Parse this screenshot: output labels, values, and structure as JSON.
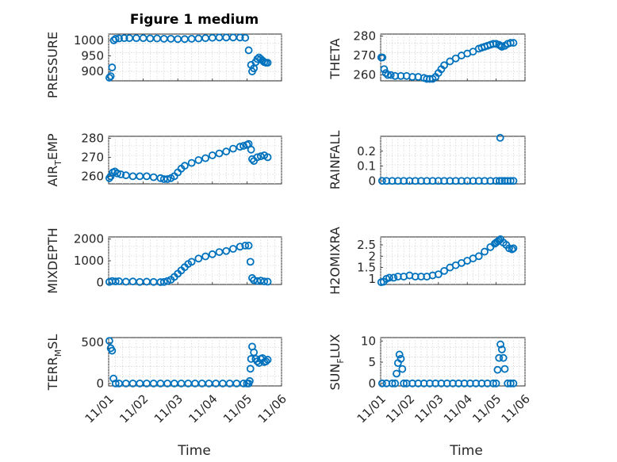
{
  "chart_data": [
    {
      "type": "scatter",
      "title": "Figure 1 medium",
      "ylabel": "PRESSURE",
      "xlim": [
        0,
        5
      ],
      "ylim": [
        870,
        1020
      ],
      "yticks": [
        900,
        950,
        1000
      ],
      "ytick_labels": [
        "900",
        "950",
        "1000"
      ],
      "x": [
        0.02,
        0.06,
        0.1,
        0.15,
        0.2,
        0.3,
        0.45,
        0.6,
        0.8,
        1.0,
        1.2,
        1.4,
        1.6,
        1.8,
        2.0,
        2.2,
        2.4,
        2.6,
        2.8,
        3.0,
        3.2,
        3.4,
        3.6,
        3.8,
        3.95,
        4.05,
        4.12,
        4.15,
        4.2,
        4.25,
        4.3,
        4.35,
        4.4,
        4.45,
        4.5,
        4.55,
        4.6
      ],
      "y": [
        880,
        885,
        913,
        1000,
        1005,
        1006,
        1007,
        1007,
        1007,
        1007,
        1006,
        1006,
        1005,
        1005,
        1004,
        1004,
        1005,
        1006,
        1007,
        1008,
        1009,
        1009,
        1009,
        1009,
        1008,
        968,
        921,
        900,
        910,
        930,
        940,
        945,
        940,
        935,
        930,
        928,
        928
      ]
    },
    {
      "type": "scatter",
      "ylabel": "THETA",
      "xlim": [
        0,
        5
      ],
      "ylim": [
        257,
        281
      ],
      "yticks": [
        260,
        270,
        280
      ],
      "ytick_labels": [
        "260",
        "270",
        "280"
      ],
      "x": [
        0.02,
        0.06,
        0.12,
        0.18,
        0.25,
        0.35,
        0.5,
        0.7,
        0.9,
        1.1,
        1.3,
        1.5,
        1.6,
        1.7,
        1.8,
        1.9,
        2.0,
        2.1,
        2.2,
        2.4,
        2.6,
        2.8,
        3.0,
        3.2,
        3.4,
        3.5,
        3.6,
        3.7,
        3.8,
        3.9,
        4.0,
        4.1,
        4.15,
        4.2,
        4.3,
        4.4,
        4.5,
        4.6
      ],
      "y": [
        269,
        269,
        263,
        261,
        260,
        260,
        259.5,
        259.5,
        259.5,
        259,
        259,
        258.5,
        258,
        258,
        258,
        259,
        261,
        263,
        265,
        267,
        268.5,
        270,
        271,
        272,
        273.5,
        274,
        274.5,
        275,
        275.5,
        276,
        276,
        275.5,
        275,
        274.5,
        275,
        276,
        276.5,
        276.5
      ]
    },
    {
      "type": "scatter",
      "ylabel": "AIR_TEMP",
      "xlim": [
        0,
        5
      ],
      "ylim": [
        256,
        281
      ],
      "yticks": [
        260,
        270,
        280
      ],
      "ytick_labels": [
        "260",
        "270",
        "280"
      ],
      "x": [
        0.02,
        0.06,
        0.12,
        0.18,
        0.25,
        0.35,
        0.5,
        0.7,
        0.9,
        1.1,
        1.3,
        1.5,
        1.6,
        1.7,
        1.8,
        1.9,
        2.0,
        2.1,
        2.2,
        2.4,
        2.6,
        2.8,
        3.0,
        3.2,
        3.4,
        3.6,
        3.8,
        3.9,
        4.0,
        4.05,
        4.12,
        4.15,
        4.2,
        4.3,
        4.4,
        4.5,
        4.6
      ],
      "y": [
        259,
        260,
        262,
        262.5,
        261.5,
        261,
        260.5,
        260,
        260,
        260,
        259.5,
        259,
        258.5,
        258.5,
        259,
        260,
        262,
        264,
        265.5,
        267,
        268.5,
        269.5,
        271,
        272,
        273,
        274.5,
        275.5,
        276,
        276.5,
        277,
        274,
        269,
        268,
        270,
        270.5,
        271,
        270
      ]
    },
    {
      "type": "scatter",
      "ylabel": "RAINFALL",
      "xlim": [
        0,
        5
      ],
      "ylim": [
        -0.02,
        0.3
      ],
      "yticks": [
        0,
        0.1,
        0.2
      ],
      "ytick_labels": [
        "0",
        "0.1",
        "0.2"
      ],
      "x": [
        0.05,
        0.2,
        0.4,
        0.6,
        0.8,
        1.0,
        1.2,
        1.4,
        1.6,
        1.8,
        2.0,
        2.2,
        2.4,
        2.6,
        2.8,
        3.0,
        3.2,
        3.4,
        3.6,
        3.8,
        4.0,
        4.12,
        4.14,
        4.2,
        4.3,
        4.4,
        4.5,
        4.6
      ],
      "y": [
        0,
        0,
        0,
        0,
        0,
        0,
        0,
        0,
        0,
        0,
        0,
        0,
        0,
        0,
        0,
        0,
        0,
        0,
        0,
        0,
        0,
        0,
        0.29,
        0,
        0,
        0,
        0,
        0
      ]
    },
    {
      "type": "scatter",
      "ylabel": "MIXDEPTH",
      "xlim": [
        0,
        5
      ],
      "ylim": [
        -100,
        2100
      ],
      "yticks": [
        0,
        1000,
        2000
      ],
      "ytick_labels": [
        "0",
        "1000",
        "2000"
      ],
      "x": [
        0.02,
        0.1,
        0.2,
        0.3,
        0.5,
        0.7,
        0.9,
        1.1,
        1.3,
        1.5,
        1.6,
        1.7,
        1.8,
        1.9,
        2.0,
        2.1,
        2.2,
        2.3,
        2.4,
        2.6,
        2.8,
        3.0,
        3.2,
        3.4,
        3.6,
        3.8,
        3.95,
        4.05,
        4.1,
        4.15,
        4.2,
        4.3,
        4.4,
        4.5,
        4.6
      ],
      "y": [
        20,
        60,
        40,
        50,
        30,
        40,
        20,
        30,
        20,
        10,
        20,
        60,
        120,
        250,
        400,
        550,
        700,
        850,
        950,
        1100,
        1200,
        1300,
        1400,
        1450,
        1550,
        1650,
        1700,
        1700,
        950,
        200,
        100,
        60,
        80,
        40,
        30
      ]
    },
    {
      "type": "scatter",
      "ylabel": "H2OMIXRA",
      "xlim": [
        0,
        5
      ],
      "ylim": [
        0.75,
        2.85
      ],
      "yticks": [
        1,
        1.5,
        2,
        2.5
      ],
      "ytick_labels": [
        "1",
        "1.5",
        "2",
        "2.5"
      ],
      "x": [
        0.02,
        0.1,
        0.2,
        0.3,
        0.45,
        0.6,
        0.8,
        1.0,
        1.2,
        1.4,
        1.6,
        1.8,
        2.0,
        2.2,
        2.4,
        2.6,
        2.8,
        3.0,
        3.2,
        3.4,
        3.6,
        3.8,
        3.95,
        4.0,
        4.05,
        4.1,
        4.15,
        4.25,
        4.35,
        4.45,
        4.55,
        4.6
      ],
      "y": [
        0.85,
        0.87,
        1.0,
        1.05,
        1.05,
        1.1,
        1.1,
        1.15,
        1.1,
        1.1,
        1.1,
        1.15,
        1.2,
        1.35,
        1.5,
        1.6,
        1.7,
        1.8,
        1.9,
        2.0,
        2.2,
        2.4,
        2.55,
        2.6,
        2.65,
        2.7,
        2.75,
        2.6,
        2.5,
        2.35,
        2.3,
        2.35
      ]
    },
    {
      "type": "scatter",
      "ylabel": "TERR_MSL",
      "xlabel": "Time",
      "xlim": [
        0,
        5
      ],
      "ylim": [
        -30,
        560
      ],
      "yticks": [
        0,
        500
      ],
      "ytick_labels": [
        "0",
        "500"
      ],
      "x": [
        0.02,
        0.06,
        0.1,
        0.14,
        0.2,
        0.3,
        0.5,
        0.7,
        0.9,
        1.1,
        1.3,
        1.5,
        1.7,
        1.9,
        2.1,
        2.3,
        2.5,
        2.7,
        2.9,
        3.1,
        3.3,
        3.5,
        3.7,
        3.9,
        4.0,
        4.05,
        4.08,
        4.1,
        4.12,
        4.15,
        4.2,
        4.25,
        4.3,
        4.35,
        4.4,
        4.45,
        4.5,
        4.55,
        4.6
      ],
      "y": [
        520,
        430,
        400,
        60,
        0,
        0,
        0,
        0,
        0,
        0,
        0,
        0,
        0,
        0,
        0,
        0,
        0,
        0,
        0,
        0,
        0,
        0,
        0,
        0,
        0,
        0,
        30,
        180,
        300,
        450,
        380,
        300,
        270,
        250,
        300,
        310,
        260,
        270,
        290
      ]
    },
    {
      "type": "scatter",
      "ylabel": "SUN_FLUX",
      "xlabel": "Time",
      "xlim": [
        0,
        5
      ],
      "ylim": [
        -0.6,
        10.8
      ],
      "yticks": [
        0,
        5,
        10
      ],
      "ytick_labels": [
        "0",
        "5",
        "10"
      ],
      "x": [
        0.05,
        0.2,
        0.4,
        0.5,
        0.55,
        0.6,
        0.65,
        0.7,
        0.75,
        0.8,
        0.9,
        1.1,
        1.3,
        1.5,
        1.7,
        1.9,
        2.1,
        2.3,
        2.5,
        2.7,
        2.9,
        3.1,
        3.3,
        3.5,
        3.7,
        3.9,
        4.0,
        4.05,
        4.1,
        4.15,
        4.2,
        4.25,
        4.3,
        4.4,
        4.5,
        4.6
      ],
      "y": [
        0,
        0,
        0,
        0,
        2.3,
        4.8,
        6.8,
        5.8,
        3.4,
        0,
        0,
        0,
        0,
        0,
        0,
        0,
        0,
        0,
        0,
        0,
        0,
        0,
        0,
        0,
        0,
        0,
        0,
        3.2,
        6.0,
        9.2,
        8.0,
        6.0,
        3.4,
        0,
        0,
        0
      ]
    }
  ],
  "x_tick_labels": [
    "11/01",
    "11/02",
    "11/03",
    "11/04",
    "11/05",
    "11/06"
  ],
  "colors": {
    "marker": "#0072BD",
    "axes": "#262626",
    "grid": "#c8c8c8"
  }
}
